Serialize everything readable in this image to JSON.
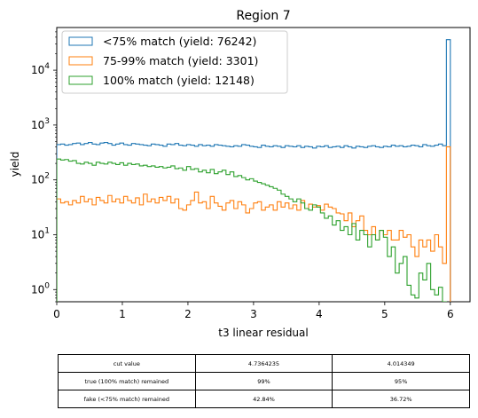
{
  "chart_data": {
    "type": "histogram",
    "title": "Region 7",
    "xlabel": "t3 linear residual",
    "ylabel": "yield",
    "xlim": [
      0,
      6.3
    ],
    "ylim": [
      0.6,
      60000
    ],
    "yscale": "log",
    "x_ticks": [
      "0",
      "1",
      "2",
      "3",
      "4",
      "5",
      "6"
    ],
    "y_ticks": [
      "10^0",
      "10^1",
      "10^2",
      "10^3",
      "10^4"
    ],
    "bin_range": [
      0,
      6
    ],
    "bins": 100,
    "legend_position": "top-left",
    "series": [
      {
        "name": "<75% match (yield: 76242)",
        "color": "#1f77b4",
        "values": [
          440,
          450,
          430,
          440,
          460,
          470,
          440,
          460,
          480,
          450,
          440,
          470,
          480,
          460,
          430,
          450,
          470,
          440,
          430,
          460,
          450,
          440,
          430,
          420,
          450,
          440,
          430,
          410,
          450,
          440,
          460,
          430,
          420,
          440,
          430,
          410,
          440,
          420,
          430,
          410,
          440,
          430,
          420,
          410,
          400,
          420,
          410,
          440,
          430,
          410,
          400,
          390,
          430,
          410,
          400,
          420,
          410,
          390,
          420,
          410,
          400,
          420,
          390,
          410,
          400,
          380,
          410,
          400,
          420,
          390,
          400,
          410,
          390,
          420,
          400,
          380,
          410,
          400,
          390,
          410,
          420,
          400,
          390,
          410,
          400,
          430,
          410,
          420,
          400,
          410,
          430,
          420,
          400,
          440,
          420,
          410,
          430,
          450,
          420,
          36000
        ]
      },
      {
        "name": "75-99% match (yield: 3301)",
        "color": "#ff7f0e",
        "values": [
          45,
          38,
          40,
          35,
          42,
          38,
          50,
          40,
          45,
          35,
          48,
          42,
          38,
          52,
          40,
          45,
          38,
          50,
          42,
          38,
          47,
          35,
          55,
          40,
          45,
          38,
          48,
          42,
          50,
          38,
          45,
          30,
          28,
          35,
          42,
          60,
          38,
          40,
          30,
          50,
          38,
          33,
          28,
          38,
          42,
          30,
          40,
          35,
          25,
          30,
          38,
          40,
          28,
          32,
          35,
          28,
          40,
          32,
          38,
          30,
          35,
          28,
          42,
          30,
          36,
          32,
          34,
          28,
          36,
          32,
          30,
          25,
          24,
          18,
          25,
          14,
          18,
          22,
          12,
          10,
          14,
          8,
          12,
          10,
          12,
          8,
          8,
          12,
          9,
          10,
          6,
          4,
          8,
          6,
          8,
          5,
          10,
          6,
          3,
          400
        ]
      },
      {
        "name": "100% match (yield: 12148)",
        "color": "#2ca02c",
        "values": [
          240,
          230,
          235,
          220,
          225,
          200,
          195,
          210,
          200,
          185,
          210,
          200,
          195,
          210,
          200,
          190,
          205,
          185,
          200,
          190,
          195,
          180,
          185,
          175,
          180,
          170,
          175,
          165,
          170,
          180,
          160,
          165,
          150,
          175,
          155,
          160,
          140,
          150,
          135,
          155,
          130,
          140,
          150,
          125,
          140,
          115,
          120,
          110,
          100,
          105,
          95,
          90,
          85,
          80,
          75,
          70,
          65,
          55,
          50,
          45,
          40,
          45,
          38,
          30,
          28,
          35,
          32,
          25,
          20,
          22,
          15,
          18,
          12,
          14,
          10,
          16,
          8,
          12,
          10,
          6,
          10,
          8,
          12,
          9,
          4,
          6,
          2,
          3,
          4,
          1.2,
          0.8,
          0.7,
          2,
          1.5,
          3,
          1,
          0.8,
          1.1,
          0.6,
          0.5
        ]
      }
    ],
    "table": {
      "rows": [
        [
          "cut value",
          "4.7364235",
          "4.014349"
        ],
        [
          "true (100% match) remained",
          "99%",
          "95%"
        ],
        [
          "fake (<75% match) remained",
          "42.84%",
          "36.72%"
        ]
      ]
    }
  }
}
